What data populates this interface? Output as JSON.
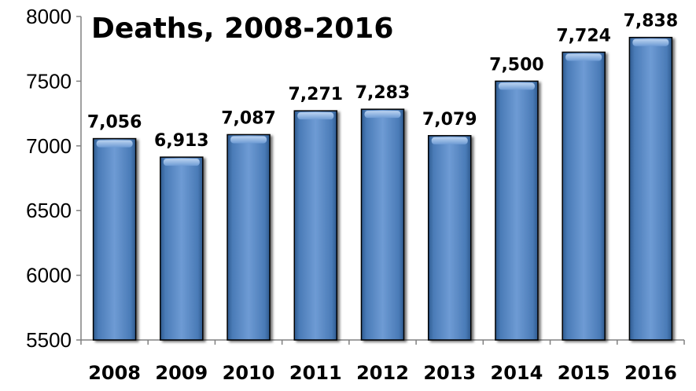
{
  "chart_data": {
    "type": "bar",
    "title": "Deaths, 2008-2016",
    "categories": [
      "2008",
      "2009",
      "2010",
      "2011",
      "2012",
      "2013",
      "2014",
      "2015",
      "2016"
    ],
    "values": [
      7056,
      6913,
      7087,
      7271,
      7283,
      7079,
      7500,
      7724,
      7838
    ],
    "data_labels": [
      "7,056",
      "6,913",
      "7,087",
      "7,271",
      "7,283",
      "7,079",
      "7,500",
      "7,724",
      "7,838"
    ],
    "ylim": [
      5500,
      8000
    ],
    "yticks": [
      5500,
      6000,
      6500,
      7000,
      7500,
      8000
    ],
    "xlabel": "",
    "ylabel": "",
    "grid": false,
    "legend": "none",
    "bar_color": "#4F81BD",
    "bar_color_dark": "#2E5A8E",
    "bar_color_light": "#8DB3E2"
  }
}
